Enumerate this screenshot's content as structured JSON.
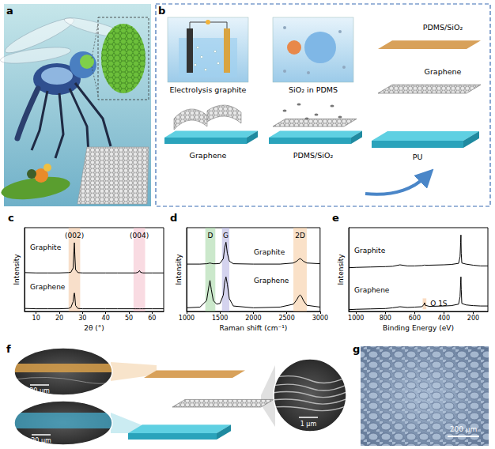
{
  "figure": {
    "a": {
      "label": "a"
    },
    "b": {
      "label": "b",
      "steps": [
        {
          "caption": "Electrolysis graphite",
          "product": "Graphene"
        },
        {
          "caption": "SiO₂ in PDMS",
          "product": "PDMS/SiO₂"
        }
      ],
      "layers": [
        "PDMS/SiO₂",
        "Graphene",
        "PU"
      ]
    },
    "f": {
      "label": "f",
      "scale_bars": [
        "20 μm",
        "1 μm",
        "20 μm"
      ]
    },
    "g": {
      "label": "g",
      "scale_bar": "200 μm"
    }
  },
  "chart_data": [
    {
      "panel": "c",
      "type": "line",
      "x_label": "2θ (°)",
      "y_label": "Intensity",
      "xlim": [
        5,
        65
      ],
      "xticks": [
        10,
        20,
        30,
        40,
        50,
        60
      ],
      "ylim": [
        0,
        2.5
      ],
      "yticks": [],
      "tick_labels": "x",
      "grid": false,
      "x": [
        5,
        10,
        15,
        20,
        24,
        25,
        26,
        26.3,
        26.5,
        26.7,
        27,
        28,
        30,
        35,
        40,
        45,
        50,
        53,
        54,
        54.6,
        55,
        56,
        60,
        65
      ],
      "series": [
        {
          "name": "Graphite",
          "color": "#000000",
          "values": [
            1.16,
            1.15,
            1.15,
            1.15,
            1.16,
            1.17,
            1.3,
            1.8,
            2.05,
            1.7,
            1.25,
            1.16,
            1.15,
            1.15,
            1.15,
            1.15,
            1.15,
            1.15,
            1.17,
            1.22,
            1.17,
            1.15,
            1.15,
            1.15
          ]
        },
        {
          "name": "Graphene",
          "color": "#000000",
          "values": [
            0.09,
            0.08,
            0.08,
            0.08,
            0.09,
            0.12,
            0.3,
            0.5,
            0.55,
            0.45,
            0.18,
            0.09,
            0.08,
            0.08,
            0.08,
            0.08,
            0.08,
            0.08,
            0.08,
            0.08,
            0.08,
            0.08,
            0.08,
            0.08
          ]
        }
      ],
      "bands": [
        {
          "x": [
            24,
            29
          ],
          "color": "#f4c9a6",
          "label": "(002)"
        },
        {
          "x": [
            52,
            57
          ],
          "color": "#f5c3cf",
          "label": "(004)"
        }
      ]
    },
    {
      "panel": "d",
      "type": "line",
      "x_label": "Raman shift (cm⁻¹)",
      "y_label": "Intensity",
      "xlim": [
        1000,
        3000
      ],
      "xticks": [
        1000,
        1500,
        2000,
        2500,
        3000
      ],
      "ylim": [
        0,
        2.3
      ],
      "yticks": [],
      "tick_labels": "x",
      "grid": false,
      "x": [
        1000,
        1200,
        1300,
        1330,
        1350,
        1370,
        1400,
        1450,
        1500,
        1550,
        1570,
        1590,
        1610,
        1640,
        1700,
        2000,
        2400,
        2600,
        2650,
        2680,
        2700,
        2720,
        2750,
        2800,
        3000
      ],
      "series": [
        {
          "name": "Graphite",
          "color": "#000000",
          "values": [
            1.3,
            1.3,
            1.31,
            1.32,
            1.33,
            1.32,
            1.31,
            1.31,
            1.32,
            1.45,
            1.75,
            1.9,
            1.6,
            1.38,
            1.31,
            1.3,
            1.3,
            1.33,
            1.38,
            1.43,
            1.45,
            1.43,
            1.38,
            1.33,
            1.31
          ]
        },
        {
          "name": "Graphene",
          "color": "#000000",
          "values": [
            0.1,
            0.12,
            0.3,
            0.65,
            0.85,
            0.6,
            0.3,
            0.2,
            0.22,
            0.45,
            0.8,
            0.95,
            0.75,
            0.35,
            0.15,
            0.1,
            0.12,
            0.2,
            0.32,
            0.42,
            0.45,
            0.42,
            0.3,
            0.17,
            0.12
          ]
        }
      ],
      "bands": [
        {
          "x": [
            1280,
            1430
          ],
          "color": "#a9d9a9",
          "label": "D"
        },
        {
          "x": [
            1530,
            1640
          ],
          "color": "#b8b5e2",
          "label": "G"
        },
        {
          "x": [
            2600,
            2800
          ],
          "color": "#f7cda4",
          "label": "2D"
        }
      ]
    },
    {
      "panel": "e",
      "type": "line",
      "x_label": "Binding Energy (eV)",
      "y_label": "Intensity",
      "xlim": [
        1050,
        100
      ],
      "xticks": [
        1000,
        800,
        600,
        400,
        200
      ],
      "ylim": [
        0,
        2.3
      ],
      "yticks": [],
      "tick_labels": "x",
      "grid": false,
      "x": [
        1050,
        1000,
        900,
        800,
        750,
        700,
        650,
        600,
        550,
        535,
        532,
        528,
        500,
        400,
        350,
        300,
        290,
        286,
        284,
        282,
        278,
        250,
        200,
        150,
        100
      ],
      "series": [
        {
          "name": "Graphite",
          "color": "#000000",
          "values": [
            1.2,
            1.21,
            1.22,
            1.23,
            1.24,
            1.28,
            1.25,
            1.25,
            1.26,
            1.27,
            1.28,
            1.27,
            1.27,
            1.28,
            1.29,
            1.32,
            1.5,
            1.9,
            2.1,
            1.6,
            1.33,
            1.3,
            1.27,
            1.25,
            1.25
          ]
        },
        {
          "name": "Graphene",
          "color": "#000000",
          "values": [
            0.05,
            0.06,
            0.07,
            0.08,
            0.1,
            0.13,
            0.11,
            0.12,
            0.13,
            0.2,
            0.24,
            0.17,
            0.14,
            0.15,
            0.16,
            0.2,
            0.4,
            0.8,
            0.95,
            0.6,
            0.22,
            0.18,
            0.16,
            0.15,
            0.15
          ]
        }
      ],
      "bands": [
        {
          "x": [
            545,
            520
          ],
          "y": [
            0.06,
            0.36
          ],
          "color": "#f6c49a",
          "label": "O 1S"
        }
      ]
    }
  ]
}
